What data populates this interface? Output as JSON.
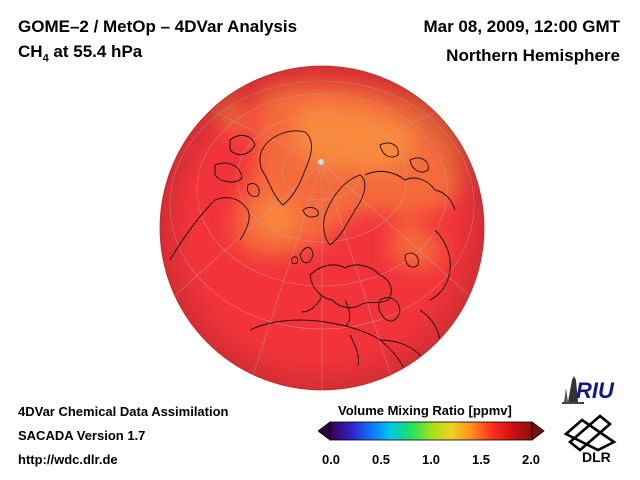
{
  "header": {
    "title": "GOME–2 / MetOp – 4DVar Analysis",
    "species_main": "CH",
    "species_sub": "4",
    "species_rest": " at 55.4 hPa",
    "date": "Mar 08, 2009, 12:00 GMT",
    "region": "Northern Hemisphere"
  },
  "footer": {
    "line1": "4DVar Chemical Data Assimilation",
    "line2": "SACADA Version 1.7",
    "line3": "http://wdc.dlr.de"
  },
  "colorbar": {
    "title": "Volume Mixing Ratio [ppmv]",
    "ticks": [
      "0.0",
      "0.5",
      "1.0",
      "1.5",
      "2.0"
    ],
    "colors": [
      "#3a0050",
      "#3020c0",
      "#1070ff",
      "#00c8e8",
      "#20e060",
      "#a0e020",
      "#f0d020",
      "#ff9020",
      "#ff3020",
      "#d01010",
      "#8a1010"
    ]
  },
  "map": {
    "field_colors": {
      "base": "#f2343a",
      "high": "#f46a3a",
      "highest": "#f98a3c"
    }
  },
  "logos": {
    "riu": "RIU",
    "dlr": "DLR"
  }
}
